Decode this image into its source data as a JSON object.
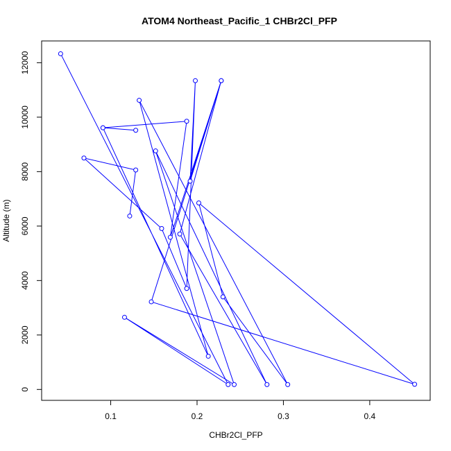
{
  "chart_data": {
    "type": "line",
    "title": "ATOM4 Northeast_Pacific_1 CHBr2Cl_PFP",
    "xlabel": "CHBr2Cl_PFP",
    "ylabel": "Altitude (m)",
    "xlim": [
      0.02,
      0.47
    ],
    "ylim": [
      -400,
      12800
    ],
    "x_ticks": [
      0.1,
      0.2,
      0.3,
      0.4
    ],
    "x_tick_labels": [
      "0.1",
      "0.2",
      "0.3",
      "0.4"
    ],
    "y_ticks": [
      0,
      2000,
      4000,
      6000,
      8000,
      10000,
      12000
    ],
    "y_tick_labels": [
      "0",
      "2000",
      "4000",
      "6000",
      "8000",
      "10000",
      "12000"
    ],
    "grid": false,
    "line_color": "#0000ff",
    "marker": "open-circle",
    "series": [
      {
        "points": [
          {
            "x": 0.042,
            "y": 12330
          },
          {
            "x": 0.236,
            "y": 180
          },
          {
            "x": 0.116,
            "y": 2650
          },
          {
            "x": 0.243,
            "y": 180
          },
          {
            "x": 0.152,
            "y": 8760
          },
          {
            "x": 0.281,
            "y": 180
          },
          {
            "x": 0.18,
            "y": 5710
          },
          {
            "x": 0.228,
            "y": 11340
          },
          {
            "x": 0.147,
            "y": 3220
          },
          {
            "x": 0.452,
            "y": 190
          },
          {
            "x": 0.202,
            "y": 6850
          },
          {
            "x": 0.23,
            "y": 3400
          },
          {
            "x": 0.305,
            "y": 180
          },
          {
            "x": 0.133,
            "y": 10620
          },
          {
            "x": 0.213,
            "y": 1220
          },
          {
            "x": 0.091,
            "y": 9610
          },
          {
            "x": 0.129,
            "y": 9520
          },
          {
            "x": 0.091,
            "y": 9610
          },
          {
            "x": 0.188,
            "y": 9850
          },
          {
            "x": 0.169,
            "y": 5590
          },
          {
            "x": 0.228,
            "y": 11340
          },
          {
            "x": 0.192,
            "y": 7650
          },
          {
            "x": 0.198,
            "y": 11340
          },
          {
            "x": 0.188,
            "y": 3710
          },
          {
            "x": 0.159,
            "y": 5910
          },
          {
            "x": 0.069,
            "y": 8500
          },
          {
            "x": 0.129,
            "y": 8060
          },
          {
            "x": 0.122,
            "y": 6370
          }
        ]
      }
    ]
  }
}
